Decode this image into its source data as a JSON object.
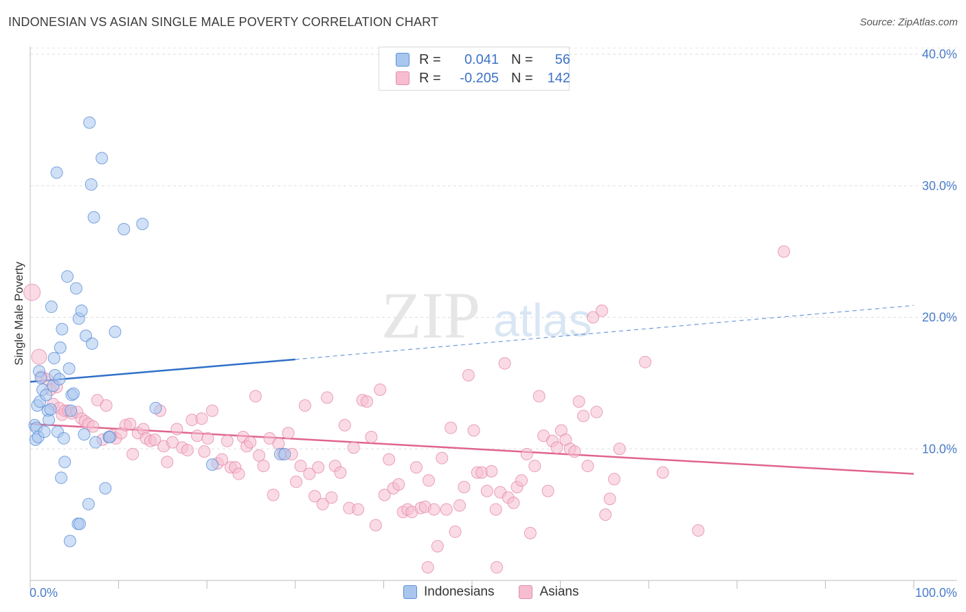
{
  "header": {
    "title": "INDONESIAN VS ASIAN SINGLE MALE POVERTY CORRELATION CHART",
    "source": "Source: ZipAtlas.com"
  },
  "watermark": {
    "zip": "ZIP",
    "atlas": "atlas"
  },
  "legend": {
    "rows": [
      {
        "r_label": "R =",
        "r_value": "0.041",
        "n_label": "N =",
        "n_value": "56"
      },
      {
        "r_label": "R =",
        "r_value": "-0.205",
        "n_label": "N =",
        "n_value": "142"
      }
    ]
  },
  "bottom_legend": {
    "items": [
      "Indonesians",
      "Asians"
    ]
  },
  "colors": {
    "indonesians_fill": "#a9c6ee",
    "indonesians_stroke": "#5b8fd6",
    "indonesians_line": "#2f6fc9",
    "asians_fill": "#f6bdd0",
    "asians_stroke": "#e58aab",
    "asians_line": "#e0638e",
    "tick": "#4a7cc9",
    "grid": "#dddddd"
  },
  "chart_data": {
    "type": "scatter",
    "title": "INDONESIAN VS ASIAN SINGLE MALE POVERTY CORRELATION CHART",
    "xlabel": "",
    "ylabel": "Single Male Poverty",
    "xlim": [
      0,
      100
    ],
    "ylim": [
      0,
      40
    ],
    "x_tick_labels": [
      "0.0%",
      "100.0%"
    ],
    "y_ticks": [
      10,
      20,
      30,
      40
    ],
    "y_tick_labels": [
      "10.0%",
      "20.0%",
      "30.0%",
      "40.0%"
    ],
    "series": [
      {
        "name": "Indonesians",
        "r": 0.041,
        "n": 56,
        "trend": {
          "x": [
            0,
            30
          ],
          "y": [
            15.1,
            16.8
          ],
          "dashed_to": [
            100,
            20.9
          ]
        },
        "points": [
          [
            0.5,
            11.8
          ],
          [
            0.6,
            10.7
          ],
          [
            0.7,
            11.6
          ],
          [
            0.8,
            13.3
          ],
          [
            0.9,
            10.9
          ],
          [
            1.0,
            15.9
          ],
          [
            1.1,
            13.6
          ],
          [
            1.2,
            15.4
          ],
          [
            1.4,
            14.5
          ],
          [
            1.6,
            11.3
          ],
          [
            1.8,
            14.1
          ],
          [
            2.0,
            12.9
          ],
          [
            2.1,
            12.2
          ],
          [
            2.3,
            13.0
          ],
          [
            2.4,
            20.8
          ],
          [
            2.6,
            14.8
          ],
          [
            2.7,
            16.9
          ],
          [
            2.8,
            15.6
          ],
          [
            3.0,
            31.0
          ],
          [
            3.1,
            11.3
          ],
          [
            3.3,
            15.3
          ],
          [
            3.4,
            17.7
          ],
          [
            3.5,
            7.8
          ],
          [
            3.6,
            19.1
          ],
          [
            3.8,
            10.8
          ],
          [
            3.9,
            9.0
          ],
          [
            4.2,
            23.1
          ],
          [
            4.4,
            16.1
          ],
          [
            4.5,
            3.0
          ],
          [
            4.6,
            12.9
          ],
          [
            4.7,
            14.1
          ],
          [
            4.9,
            14.2
          ],
          [
            5.2,
            22.2
          ],
          [
            5.4,
            4.3
          ],
          [
            5.5,
            19.9
          ],
          [
            5.6,
            4.3
          ],
          [
            5.8,
            20.5
          ],
          [
            6.1,
            11.1
          ],
          [
            6.3,
            18.6
          ],
          [
            6.6,
            5.8
          ],
          [
            6.7,
            34.8
          ],
          [
            6.9,
            30.1
          ],
          [
            7.0,
            18.0
          ],
          [
            7.2,
            27.6
          ],
          [
            7.4,
            10.5
          ],
          [
            8.1,
            32.1
          ],
          [
            8.5,
            7.0
          ],
          [
            8.9,
            10.9
          ],
          [
            9.0,
            10.9
          ],
          [
            9.6,
            18.9
          ],
          [
            10.6,
            26.7
          ],
          [
            12.7,
            27.1
          ],
          [
            14.2,
            13.1
          ],
          [
            20.6,
            8.8
          ],
          [
            28.3,
            9.6
          ],
          [
            28.8,
            9.6
          ]
        ]
      },
      {
        "name": "Asians",
        "r": -0.205,
        "n": 142,
        "trend": {
          "x": [
            0,
            100
          ],
          "y": [
            11.9,
            8.1
          ]
        },
        "points": [
          [
            0.2,
            21.9
          ],
          [
            1.0,
            17.0
          ],
          [
            1.3,
            15.5
          ],
          [
            1.9,
            15.3
          ],
          [
            2.3,
            14.5
          ],
          [
            2.6,
            13.4
          ],
          [
            3.0,
            14.7
          ],
          [
            3.3,
            13.1
          ],
          [
            3.6,
            12.6
          ],
          [
            3.9,
            12.9
          ],
          [
            4.3,
            12.9
          ],
          [
            4.7,
            12.7
          ],
          [
            5.3,
            12.8
          ],
          [
            5.8,
            12.3
          ],
          [
            6.2,
            12.1
          ],
          [
            6.6,
            11.9
          ],
          [
            7.1,
            11.7
          ],
          [
            7.6,
            13.7
          ],
          [
            8.2,
            10.7
          ],
          [
            8.6,
            13.3
          ],
          [
            9.2,
            11.0
          ],
          [
            9.7,
            10.8
          ],
          [
            10.3,
            11.2
          ],
          [
            10.8,
            11.8
          ],
          [
            11.3,
            11.9
          ],
          [
            11.6,
            9.6
          ],
          [
            12.2,
            11.2
          ],
          [
            12.8,
            11.5
          ],
          [
            13.1,
            10.8
          ],
          [
            13.6,
            10.6
          ],
          [
            14.1,
            10.7
          ],
          [
            14.7,
            12.9
          ],
          [
            15.1,
            10.2
          ],
          [
            15.5,
            9.0
          ],
          [
            16.1,
            10.5
          ],
          [
            16.6,
            11.5
          ],
          [
            17.2,
            10.1
          ],
          [
            17.8,
            9.9
          ],
          [
            18.3,
            12.2
          ],
          [
            18.9,
            11.0
          ],
          [
            19.4,
            12.3
          ],
          [
            19.7,
            9.8
          ],
          [
            20.1,
            10.8
          ],
          [
            20.6,
            12.9
          ],
          [
            21.2,
            8.9
          ],
          [
            21.7,
            9.2
          ],
          [
            22.3,
            10.6
          ],
          [
            22.7,
            8.6
          ],
          [
            23.2,
            8.6
          ],
          [
            23.6,
            8.1
          ],
          [
            24.1,
            10.9
          ],
          [
            24.5,
            10.2
          ],
          [
            24.9,
            10.5
          ],
          [
            25.5,
            14.0
          ],
          [
            25.9,
            9.5
          ],
          [
            26.4,
            8.7
          ],
          [
            27.1,
            10.8
          ],
          [
            27.5,
            6.5
          ],
          [
            28.1,
            10.4
          ],
          [
            28.6,
            9.6
          ],
          [
            29.2,
            11.2
          ],
          [
            29.6,
            9.6
          ],
          [
            30.1,
            7.5
          ],
          [
            30.6,
            8.7
          ],
          [
            31.1,
            13.3
          ],
          [
            31.6,
            8.1
          ],
          [
            32.2,
            6.4
          ],
          [
            32.6,
            8.6
          ],
          [
            33.1,
            5.8
          ],
          [
            33.6,
            13.9
          ],
          [
            34.1,
            6.3
          ],
          [
            34.5,
            8.7
          ],
          [
            35.1,
            8.2
          ],
          [
            35.6,
            11.8
          ],
          [
            36.1,
            5.5
          ],
          [
            36.6,
            10.1
          ],
          [
            37.1,
            5.4
          ],
          [
            37.6,
            13.7
          ],
          [
            38.1,
            13.6
          ],
          [
            38.6,
            10.9
          ],
          [
            39.1,
            4.2
          ],
          [
            39.6,
            14.5
          ],
          [
            40.1,
            6.5
          ],
          [
            40.6,
            9.2
          ],
          [
            41.1,
            7.0
          ],
          [
            41.7,
            7.3
          ],
          [
            42.2,
            5.2
          ],
          [
            42.7,
            5.4
          ],
          [
            43.2,
            5.2
          ],
          [
            43.7,
            8.6
          ],
          [
            44.2,
            5.5
          ],
          [
            44.7,
            5.6
          ],
          [
            45.1,
            7.6
          ],
          [
            45.7,
            5.4
          ],
          [
            46.1,
            2.6
          ],
          [
            46.6,
            9.3
          ],
          [
            47.1,
            5.4
          ],
          [
            47.6,
            11.6
          ],
          [
            48.1,
            3.7
          ],
          [
            48.6,
            5.7
          ],
          [
            49.1,
            7.1
          ],
          [
            49.6,
            15.6
          ],
          [
            50.2,
            11.4
          ],
          [
            50.6,
            8.2
          ],
          [
            51.1,
            8.2
          ],
          [
            51.7,
            6.8
          ],
          [
            52.2,
            8.3
          ],
          [
            52.7,
            5.4
          ],
          [
            53.2,
            6.7
          ],
          [
            53.7,
            16.5
          ],
          [
            54.1,
            6.3
          ],
          [
            54.7,
            5.9
          ],
          [
            55.1,
            7.1
          ],
          [
            55.6,
            7.6
          ],
          [
            56.2,
            9.6
          ],
          [
            56.6,
            3.6
          ],
          [
            57.1,
            8.7
          ],
          [
            57.6,
            14.0
          ],
          [
            58.1,
            11.0
          ],
          [
            58.6,
            6.8
          ],
          [
            59.1,
            10.6
          ],
          [
            59.6,
            10.1
          ],
          [
            60.1,
            11.4
          ],
          [
            60.6,
            10.7
          ],
          [
            61.1,
            10.0
          ],
          [
            61.6,
            9.8
          ],
          [
            62.1,
            13.6
          ],
          [
            62.6,
            12.5
          ],
          [
            63.1,
            8.7
          ],
          [
            63.7,
            20.0
          ],
          [
            64.1,
            12.8
          ],
          [
            64.7,
            20.5
          ],
          [
            65.1,
            5.0
          ],
          [
            65.6,
            6.2
          ],
          [
            66.1,
            7.7
          ],
          [
            66.7,
            10.0
          ],
          [
            69.6,
            16.6
          ],
          [
            71.6,
            8.2
          ],
          [
            75.6,
            3.8
          ],
          [
            85.3,
            25.0
          ],
          [
            45.0,
            1.0
          ],
          [
            52.8,
            1.0
          ]
        ]
      }
    ]
  },
  "axis": {
    "ylabel": "Single Male Poverty",
    "x_left": "0.0%",
    "x_right": "100.0%"
  }
}
